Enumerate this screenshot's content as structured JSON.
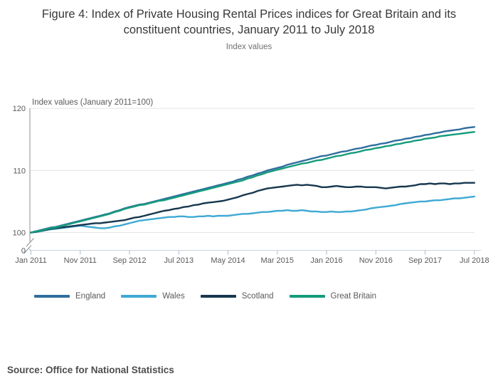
{
  "header": {
    "title": "Figure 4: Index of Private Housing Rental Prices indices for Great Britain and its constituent countries, January 2011 to July 2018",
    "subtitle": "Index values"
  },
  "chart_data": {
    "type": "line",
    "title": "Figure 4: Index of Private Housing Rental Prices indices for Great Britain and its constituent countries, January 2011 to July 2018",
    "axis_title": "Index values (January 2011=100)",
    "x_start": "Jan 2011",
    "x_end": "Jul 2018",
    "x_tick_labels": [
      "Jan 2011",
      "Nov 2011",
      "Sep 2012",
      "Jul 2013",
      "May 2014",
      "Mar 2015",
      "Jan 2016",
      "Nov 2016",
      "Sep 2017",
      "Jul 2018"
    ],
    "x_tick_months": [
      0,
      10,
      20,
      30,
      40,
      50,
      60,
      70,
      80,
      90
    ],
    "y_ticks": [
      100,
      110,
      120
    ],
    "y_axis_break_label": "0",
    "ylim": [
      100,
      120
    ],
    "grid": "horizontal",
    "legend_position": "bottom",
    "series": [
      {
        "name": "England",
        "color": "#2f6e9d",
        "values": [
          100.0,
          100.2,
          100.4,
          100.6,
          100.8,
          100.9,
          101.1,
          101.3,
          101.5,
          101.7,
          101.9,
          102.1,
          102.3,
          102.5,
          102.7,
          102.9,
          103.1,
          103.4,
          103.6,
          103.9,
          104.1,
          104.3,
          104.5,
          104.6,
          104.8,
          105.0,
          105.2,
          105.4,
          105.6,
          105.8,
          106.0,
          106.2,
          106.4,
          106.6,
          106.8,
          107.0,
          107.2,
          107.4,
          107.6,
          107.8,
          108.0,
          108.2,
          108.5,
          108.7,
          109.0,
          109.2,
          109.5,
          109.7,
          110.0,
          110.2,
          110.4,
          110.6,
          110.9,
          111.1,
          111.3,
          111.5,
          111.7,
          111.9,
          112.1,
          112.3,
          112.4,
          112.6,
          112.8,
          113.0,
          113.1,
          113.3,
          113.5,
          113.6,
          113.8,
          114.0,
          114.1,
          114.3,
          114.4,
          114.6,
          114.8,
          114.9,
          115.1,
          115.2,
          115.4,
          115.5,
          115.7,
          115.8,
          116.0,
          116.1,
          116.3,
          116.4,
          116.5,
          116.6,
          116.8,
          116.9,
          117.0
        ]
      },
      {
        "name": "Wales",
        "color": "#3fa9d4",
        "values": [
          100.0,
          100.1,
          100.2,
          100.4,
          100.5,
          100.6,
          100.7,
          100.8,
          100.9,
          101.0,
          101.1,
          101.0,
          100.9,
          100.8,
          100.7,
          100.7,
          100.8,
          101.0,
          101.1,
          101.3,
          101.5,
          101.7,
          101.9,
          102.0,
          102.1,
          102.2,
          102.3,
          102.4,
          102.5,
          102.5,
          102.6,
          102.6,
          102.5,
          102.5,
          102.6,
          102.6,
          102.7,
          102.6,
          102.7,
          102.7,
          102.7,
          102.8,
          102.9,
          103.0,
          103.0,
          103.1,
          103.2,
          103.3,
          103.3,
          103.4,
          103.5,
          103.5,
          103.6,
          103.5,
          103.5,
          103.6,
          103.5,
          103.4,
          103.4,
          103.3,
          103.3,
          103.4,
          103.3,
          103.3,
          103.4,
          103.4,
          103.5,
          103.6,
          103.7,
          103.9,
          104.0,
          104.1,
          104.2,
          104.3,
          104.4,
          104.6,
          104.7,
          104.8,
          104.9,
          105.0,
          105.0,
          105.1,
          105.2,
          105.2,
          105.3,
          105.4,
          105.5,
          105.5,
          105.6,
          105.7,
          105.8
        ]
      },
      {
        "name": "Scotland",
        "color": "#17374f",
        "values": [
          100.0,
          100.1,
          100.3,
          100.4,
          100.6,
          100.7,
          100.8,
          100.9,
          101.0,
          101.1,
          101.2,
          101.3,
          101.4,
          101.5,
          101.5,
          101.6,
          101.7,
          101.8,
          101.9,
          102.0,
          102.2,
          102.4,
          102.5,
          102.7,
          102.9,
          103.1,
          103.3,
          103.5,
          103.6,
          103.8,
          103.9,
          104.1,
          104.2,
          104.4,
          104.5,
          104.7,
          104.8,
          104.9,
          105.0,
          105.1,
          105.3,
          105.5,
          105.7,
          106.0,
          106.2,
          106.4,
          106.7,
          106.9,
          107.1,
          107.2,
          107.3,
          107.4,
          107.5,
          107.6,
          107.7,
          107.6,
          107.7,
          107.6,
          107.5,
          107.3,
          107.3,
          107.4,
          107.5,
          107.4,
          107.3,
          107.3,
          107.4,
          107.4,
          107.3,
          107.3,
          107.3,
          107.2,
          107.1,
          107.2,
          107.3,
          107.4,
          107.4,
          107.5,
          107.6,
          107.8,
          107.8,
          107.9,
          107.8,
          107.9,
          107.9,
          107.8,
          107.9,
          107.9,
          108.0,
          108.0,
          108.0
        ]
      },
      {
        "name": "Great Britain",
        "color": "#149c7c",
        "values": [
          100.0,
          100.2,
          100.3,
          100.5,
          100.7,
          100.8,
          101.0,
          101.2,
          101.4,
          101.6,
          101.8,
          102.0,
          102.2,
          102.4,
          102.6,
          102.8,
          103.0,
          103.3,
          103.5,
          103.8,
          104.0,
          104.2,
          104.4,
          104.5,
          104.7,
          104.9,
          105.1,
          105.2,
          105.4,
          105.6,
          105.8,
          106.0,
          106.2,
          106.4,
          106.6,
          106.8,
          107.0,
          107.2,
          107.4,
          107.6,
          107.8,
          108.0,
          108.2,
          108.4,
          108.7,
          108.9,
          109.2,
          109.4,
          109.7,
          109.9,
          110.1,
          110.3,
          110.5,
          110.7,
          110.9,
          111.1,
          111.2,
          111.4,
          111.6,
          111.7,
          111.9,
          112.1,
          112.3,
          112.4,
          112.6,
          112.8,
          112.9,
          113.1,
          113.3,
          113.4,
          113.6,
          113.7,
          113.9,
          114.0,
          114.2,
          114.3,
          114.5,
          114.6,
          114.8,
          114.9,
          115.1,
          115.2,
          115.3,
          115.5,
          115.6,
          115.7,
          115.8,
          115.9,
          116.0,
          116.1,
          116.2
        ]
      }
    ]
  },
  "footer": {
    "source": "Source: Office for National Statistics"
  }
}
